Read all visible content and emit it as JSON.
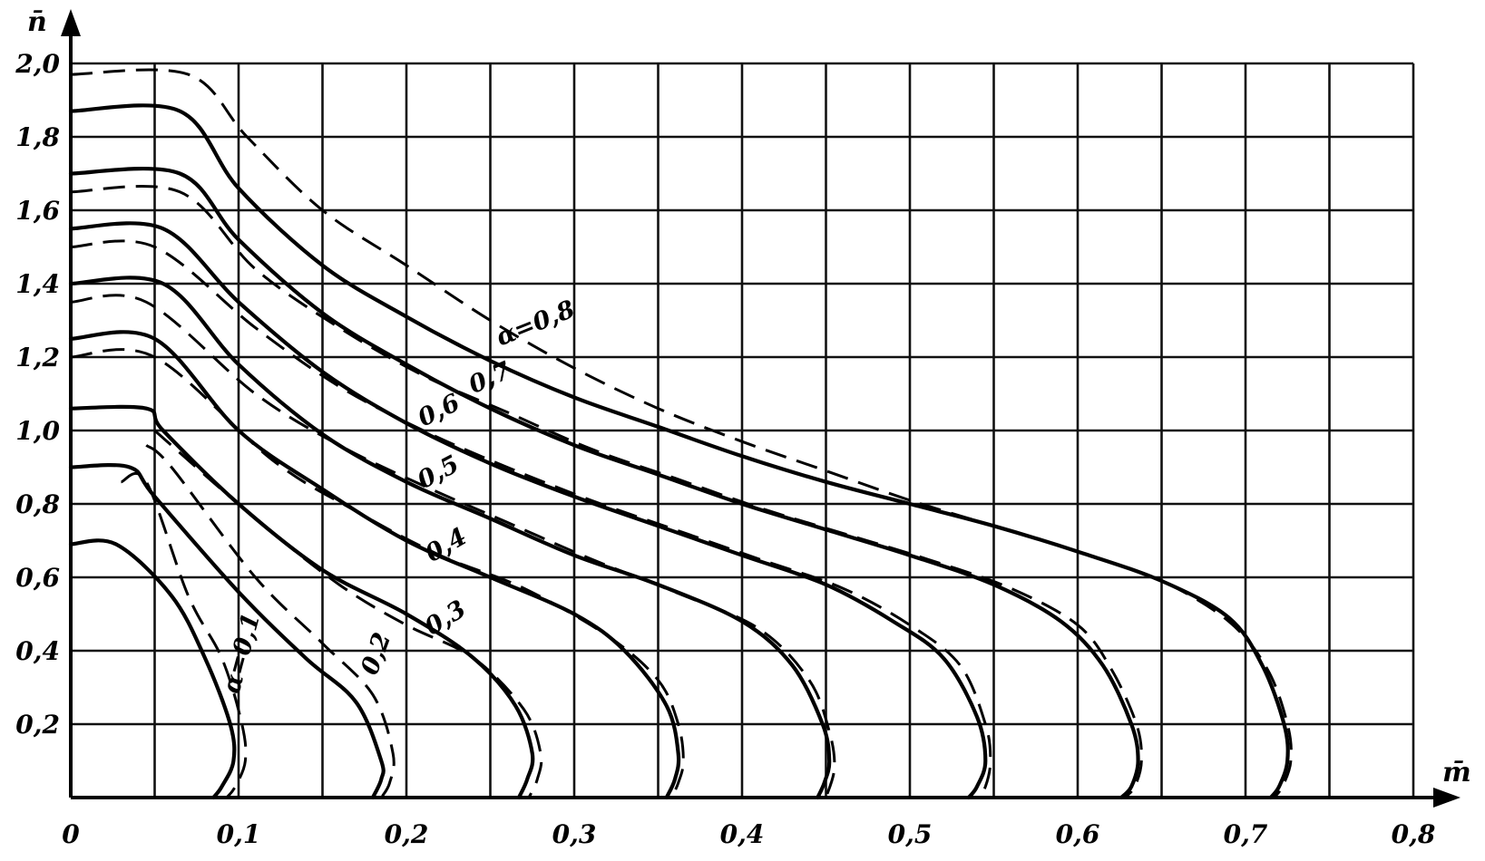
{
  "chart_data": {
    "type": "line",
    "title": "",
    "xlabel": "m̄",
    "ylabel": "n̄",
    "xlim": [
      0,
      0.8
    ],
    "ylim": [
      0,
      2.0
    ],
    "grid": true,
    "x_grid_step": 0.05,
    "y_grid_step": 0.2,
    "x_tick_labels": [
      {
        "value": 0.0,
        "label": "0"
      },
      {
        "value": 0.1,
        "label": "0,1"
      },
      {
        "value": 0.2,
        "label": "0,2"
      },
      {
        "value": 0.3,
        "label": "0,3"
      },
      {
        "value": 0.4,
        "label": "0,4"
      },
      {
        "value": 0.5,
        "label": "0,5"
      },
      {
        "value": 0.6,
        "label": "0,6"
      },
      {
        "value": 0.7,
        "label": "0,7"
      },
      {
        "value": 0.8,
        "label": "0,8"
      }
    ],
    "y_tick_labels": [
      {
        "value": 0.2,
        "label": "0,2"
      },
      {
        "value": 0.4,
        "label": "0,4"
      },
      {
        "value": 0.6,
        "label": "0,6"
      },
      {
        "value": 0.8,
        "label": "0,8"
      },
      {
        "value": 1.0,
        "label": "1,0"
      },
      {
        "value": 1.2,
        "label": "1,2"
      },
      {
        "value": 1.4,
        "label": "1,4"
      },
      {
        "value": 1.6,
        "label": "1,6"
      },
      {
        "value": 1.8,
        "label": "1,8"
      },
      {
        "value": 2.0,
        "label": "2,0"
      }
    ],
    "series": [
      {
        "alpha": 0.1,
        "style": "solid",
        "points": [
          [
            0,
            0.69
          ],
          [
            0.027,
            0.69
          ],
          [
            0.06,
            0.55
          ],
          [
            0.08,
            0.38
          ],
          [
            0.095,
            0.2
          ],
          [
            0.097,
            0.1
          ],
          [
            0.09,
            0.03
          ],
          [
            0.085,
            0
          ]
        ]
      },
      {
        "alpha": 0.1,
        "style": "dashed",
        "points": [
          [
            0.03,
            0.86
          ],
          [
            0.045,
            0.86
          ],
          [
            0.07,
            0.55
          ],
          [
            0.09,
            0.38
          ],
          [
            0.102,
            0.2
          ],
          [
            0.104,
            0.1
          ],
          [
            0.098,
            0.03
          ],
          [
            0.093,
            0
          ]
        ]
      },
      {
        "alpha": 0.2,
        "style": "solid",
        "points": [
          [
            0,
            0.9
          ],
          [
            0.035,
            0.9
          ],
          [
            0.05,
            0.82
          ],
          [
            0.1,
            0.56
          ],
          [
            0.14,
            0.38
          ],
          [
            0.17,
            0.26
          ],
          [
            0.185,
            0.1
          ],
          [
            0.185,
            0.05
          ],
          [
            0.18,
            0
          ]
        ]
      },
      {
        "alpha": 0.2,
        "style": "dashed",
        "points": [
          [
            0.045,
            0.96
          ],
          [
            0.06,
            0.9
          ],
          [
            0.11,
            0.6
          ],
          [
            0.15,
            0.42
          ],
          [
            0.18,
            0.28
          ],
          [
            0.192,
            0.12
          ],
          [
            0.19,
            0.04
          ],
          [
            0.185,
            0
          ]
        ]
      },
      {
        "alpha": 0.3,
        "style": "solid",
        "points": [
          [
            0,
            1.06
          ],
          [
            0.045,
            1.06
          ],
          [
            0.055,
            1.0
          ],
          [
            0.1,
            0.8
          ],
          [
            0.15,
            0.62
          ],
          [
            0.2,
            0.5
          ],
          [
            0.24,
            0.38
          ],
          [
            0.265,
            0.25
          ],
          [
            0.275,
            0.12
          ],
          [
            0.272,
            0.05
          ],
          [
            0.267,
            0
          ]
        ]
      },
      {
        "alpha": 0.3,
        "style": "dashed",
        "points": [
          [
            0.05,
            1.0
          ],
          [
            0.11,
            0.76
          ],
          [
            0.16,
            0.58
          ],
          [
            0.2,
            0.47
          ],
          [
            0.24,
            0.38
          ],
          [
            0.27,
            0.24
          ],
          [
            0.28,
            0.12
          ],
          [
            0.278,
            0.05
          ],
          [
            0.273,
            0
          ]
        ]
      },
      {
        "alpha": 0.4,
        "style": "solid",
        "points": [
          [
            0,
            1.25
          ],
          [
            0.05,
            1.25
          ],
          [
            0.1,
            1.0
          ],
          [
            0.15,
            0.84
          ],
          [
            0.2,
            0.7
          ],
          [
            0.25,
            0.6
          ],
          [
            0.3,
            0.5
          ],
          [
            0.33,
            0.4
          ],
          [
            0.355,
            0.25
          ],
          [
            0.362,
            0.12
          ],
          [
            0.36,
            0.05
          ],
          [
            0.355,
            0
          ]
        ]
      },
      {
        "alpha": 0.4,
        "style": "dashed",
        "points": [
          [
            0,
            1.2
          ],
          [
            0.05,
            1.2
          ],
          [
            0.12,
            0.92
          ],
          [
            0.17,
            0.78
          ],
          [
            0.22,
            0.66
          ],
          [
            0.27,
            0.57
          ],
          [
            0.32,
            0.44
          ],
          [
            0.35,
            0.32
          ],
          [
            0.362,
            0.2
          ],
          [
            0.365,
            0.1
          ],
          [
            0.362,
            0.04
          ],
          [
            0.358,
            0
          ]
        ]
      },
      {
        "alpha": 0.5,
        "style": "solid",
        "points": [
          [
            0,
            1.4
          ],
          [
            0.055,
            1.4
          ],
          [
            0.1,
            1.18
          ],
          [
            0.15,
            0.99
          ],
          [
            0.2,
            0.86
          ],
          [
            0.25,
            0.76
          ],
          [
            0.3,
            0.66
          ],
          [
            0.35,
            0.58
          ],
          [
            0.4,
            0.48
          ],
          [
            0.43,
            0.36
          ],
          [
            0.448,
            0.2
          ],
          [
            0.452,
            0.1
          ],
          [
            0.449,
            0.04
          ],
          [
            0.445,
            0
          ]
        ]
      },
      {
        "alpha": 0.5,
        "style": "dashed",
        "points": [
          [
            0,
            1.35
          ],
          [
            0.045,
            1.35
          ],
          [
            0.11,
            1.1
          ],
          [
            0.16,
            0.96
          ],
          [
            0.21,
            0.85
          ],
          [
            0.26,
            0.75
          ],
          [
            0.31,
            0.65
          ],
          [
            0.36,
            0.56
          ],
          [
            0.41,
            0.46
          ],
          [
            0.44,
            0.32
          ],
          [
            0.452,
            0.18
          ],
          [
            0.455,
            0.08
          ],
          [
            0.45,
            0
          ]
        ]
      },
      {
        "alpha": 0.6,
        "style": "solid",
        "points": [
          [
            0,
            1.55
          ],
          [
            0.055,
            1.55
          ],
          [
            0.1,
            1.35
          ],
          [
            0.15,
            1.16
          ],
          [
            0.2,
            1.02
          ],
          [
            0.25,
            0.91
          ],
          [
            0.3,
            0.82
          ],
          [
            0.35,
            0.74
          ],
          [
            0.4,
            0.66
          ],
          [
            0.45,
            0.58
          ],
          [
            0.49,
            0.48
          ],
          [
            0.52,
            0.38
          ],
          [
            0.54,
            0.22
          ],
          [
            0.545,
            0.1
          ],
          [
            0.54,
            0.03
          ],
          [
            0.535,
            0
          ]
        ]
      },
      {
        "alpha": 0.6,
        "style": "dashed",
        "points": [
          [
            0,
            1.5
          ],
          [
            0.05,
            1.5
          ],
          [
            0.11,
            1.28
          ],
          [
            0.16,
            1.12
          ],
          [
            0.21,
            1.0
          ],
          [
            0.26,
            0.9
          ],
          [
            0.31,
            0.81
          ],
          [
            0.36,
            0.73
          ],
          [
            0.41,
            0.65
          ],
          [
            0.46,
            0.57
          ],
          [
            0.5,
            0.47
          ],
          [
            0.53,
            0.36
          ],
          [
            0.545,
            0.2
          ],
          [
            0.548,
            0.1
          ],
          [
            0.545,
            0.03
          ],
          [
            0.54,
            0
          ]
        ]
      },
      {
        "alpha": 0.7,
        "style": "solid",
        "points": [
          [
            0,
            1.7
          ],
          [
            0.065,
            1.7
          ],
          [
            0.1,
            1.52
          ],
          [
            0.15,
            1.32
          ],
          [
            0.2,
            1.18
          ],
          [
            0.25,
            1.06
          ],
          [
            0.3,
            0.96
          ],
          [
            0.35,
            0.88
          ],
          [
            0.4,
            0.8
          ],
          [
            0.45,
            0.73
          ],
          [
            0.5,
            0.66
          ],
          [
            0.55,
            0.58
          ],
          [
            0.59,
            0.48
          ],
          [
            0.615,
            0.36
          ],
          [
            0.632,
            0.2
          ],
          [
            0.636,
            0.1
          ],
          [
            0.632,
            0.03
          ],
          [
            0.626,
            0
          ]
        ]
      },
      {
        "alpha": 0.7,
        "style": "dashed",
        "points": [
          [
            0,
            1.65
          ],
          [
            0.065,
            1.65
          ],
          [
            0.11,
            1.44
          ],
          [
            0.16,
            1.28
          ],
          [
            0.21,
            1.15
          ],
          [
            0.26,
            1.05
          ],
          [
            0.31,
            0.95
          ],
          [
            0.36,
            0.87
          ],
          [
            0.41,
            0.79
          ],
          [
            0.46,
            0.72
          ],
          [
            0.51,
            0.65
          ],
          [
            0.56,
            0.57
          ],
          [
            0.6,
            0.47
          ],
          [
            0.62,
            0.35
          ],
          [
            0.635,
            0.2
          ],
          [
            0.638,
            0.1
          ],
          [
            0.634,
            0.03
          ],
          [
            0.628,
            0
          ]
        ]
      },
      {
        "alpha": 0.8,
        "style": "solid",
        "points": [
          [
            0,
            1.87
          ],
          [
            0.065,
            1.87
          ],
          [
            0.1,
            1.66
          ],
          [
            0.15,
            1.45
          ],
          [
            0.2,
            1.31
          ],
          [
            0.25,
            1.19
          ],
          [
            0.3,
            1.09
          ],
          [
            0.35,
            1.01
          ],
          [
            0.4,
            0.93
          ],
          [
            0.45,
            0.86
          ],
          [
            0.5,
            0.8
          ],
          [
            0.55,
            0.74
          ],
          [
            0.6,
            0.67
          ],
          [
            0.65,
            0.59
          ],
          [
            0.69,
            0.49
          ],
          [
            0.71,
            0.36
          ],
          [
            0.723,
            0.2
          ],
          [
            0.725,
            0.1
          ],
          [
            0.72,
            0.03
          ],
          [
            0.715,
            0
          ]
        ]
      },
      {
        "alpha": 0.8,
        "style": "dashed",
        "points": [
          [
            0,
            1.97
          ],
          [
            0.07,
            1.97
          ],
          [
            0.105,
            1.8
          ],
          [
            0.15,
            1.6
          ],
          [
            0.2,
            1.45
          ],
          [
            0.25,
            1.3
          ],
          [
            0.3,
            1.17
          ],
          [
            0.35,
            1.06
          ],
          [
            0.4,
            0.97
          ],
          [
            0.45,
            0.89
          ],
          [
            0.5,
            0.81
          ],
          [
            0.55,
            0.74
          ],
          [
            0.6,
            0.67
          ],
          [
            0.65,
            0.59
          ],
          [
            0.69,
            0.48
          ],
          [
            0.713,
            0.35
          ],
          [
            0.725,
            0.2
          ],
          [
            0.727,
            0.1
          ],
          [
            0.722,
            0.03
          ],
          [
            0.717,
            0
          ]
        ]
      }
    ],
    "curve_labels": [
      {
        "text": "α=0,1",
        "x": 0.1,
        "y": 0.28,
        "rotate": -75
      },
      {
        "text": "0,2",
        "x": 0.182,
        "y": 0.33,
        "rotate": -70
      },
      {
        "text": "0,3",
        "x": 0.215,
        "y": 0.44,
        "rotate": -32
      },
      {
        "text": "0,4",
        "x": 0.215,
        "y": 0.64,
        "rotate": -30
      },
      {
        "text": "0,5",
        "x": 0.21,
        "y": 0.84,
        "rotate": -28
      },
      {
        "text": "0,6",
        "x": 0.21,
        "y": 1.01,
        "rotate": -26
      },
      {
        "text": "0,7",
        "x": 0.24,
        "y": 1.1,
        "rotate": -24
      },
      {
        "text": "α=0,8",
        "x": 0.256,
        "y": 1.23,
        "rotate": -22
      }
    ]
  }
}
